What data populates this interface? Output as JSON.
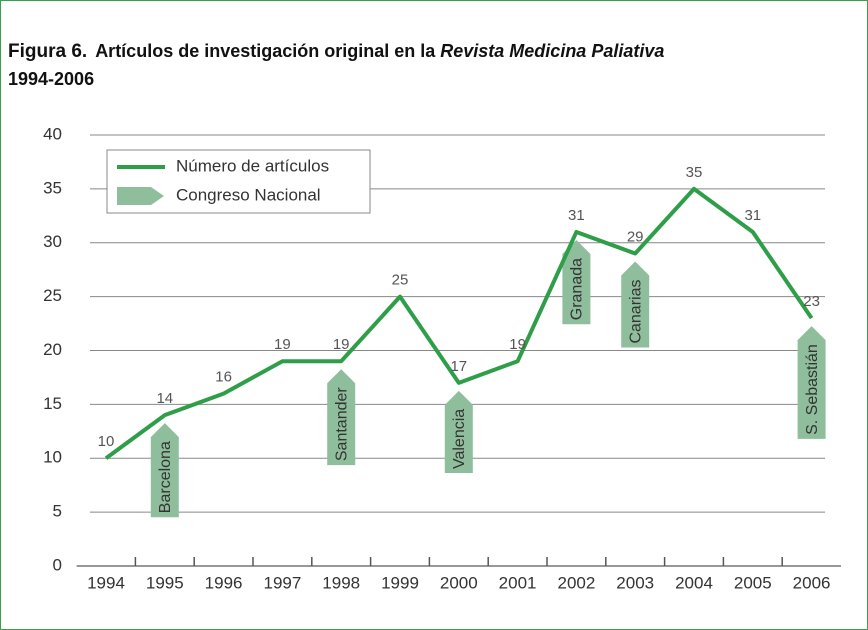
{
  "chart_data": {
    "type": "line",
    "title": {
      "label": "Figura 6.",
      "text": "Artículos de investigación original en la",
      "journal": "Revista Medicina Paliativa",
      "years": "1994-2006"
    },
    "categories": [
      "1994",
      "1995",
      "1996",
      "1997",
      "1998",
      "1999",
      "2000",
      "2001",
      "2002",
      "2003",
      "2004",
      "2005",
      "2006"
    ],
    "series": [
      {
        "name": "Número de artículos",
        "color": "#2e9e48",
        "values": [
          10,
          14,
          16,
          19,
          19,
          25,
          17,
          19,
          31,
          29,
          35,
          31,
          23
        ]
      }
    ],
    "events": {
      "name": "Congreso Nacional",
      "color": "#8fbe9c",
      "items": [
        {
          "category": "1995",
          "label": "Barcelona"
        },
        {
          "category": "1998",
          "label": "Santander"
        },
        {
          "category": "2000",
          "label": "Valencia"
        },
        {
          "category": "2002",
          "label": "Granada"
        },
        {
          "category": "2003",
          "label": "Canarias"
        },
        {
          "category": "2006",
          "label": "S. Sebastián"
        }
      ]
    },
    "ylim": [
      0,
      40
    ],
    "yticks": [
      0,
      5,
      10,
      15,
      20,
      25,
      30,
      35,
      40
    ],
    "grid": true,
    "legend": "upper left"
  }
}
